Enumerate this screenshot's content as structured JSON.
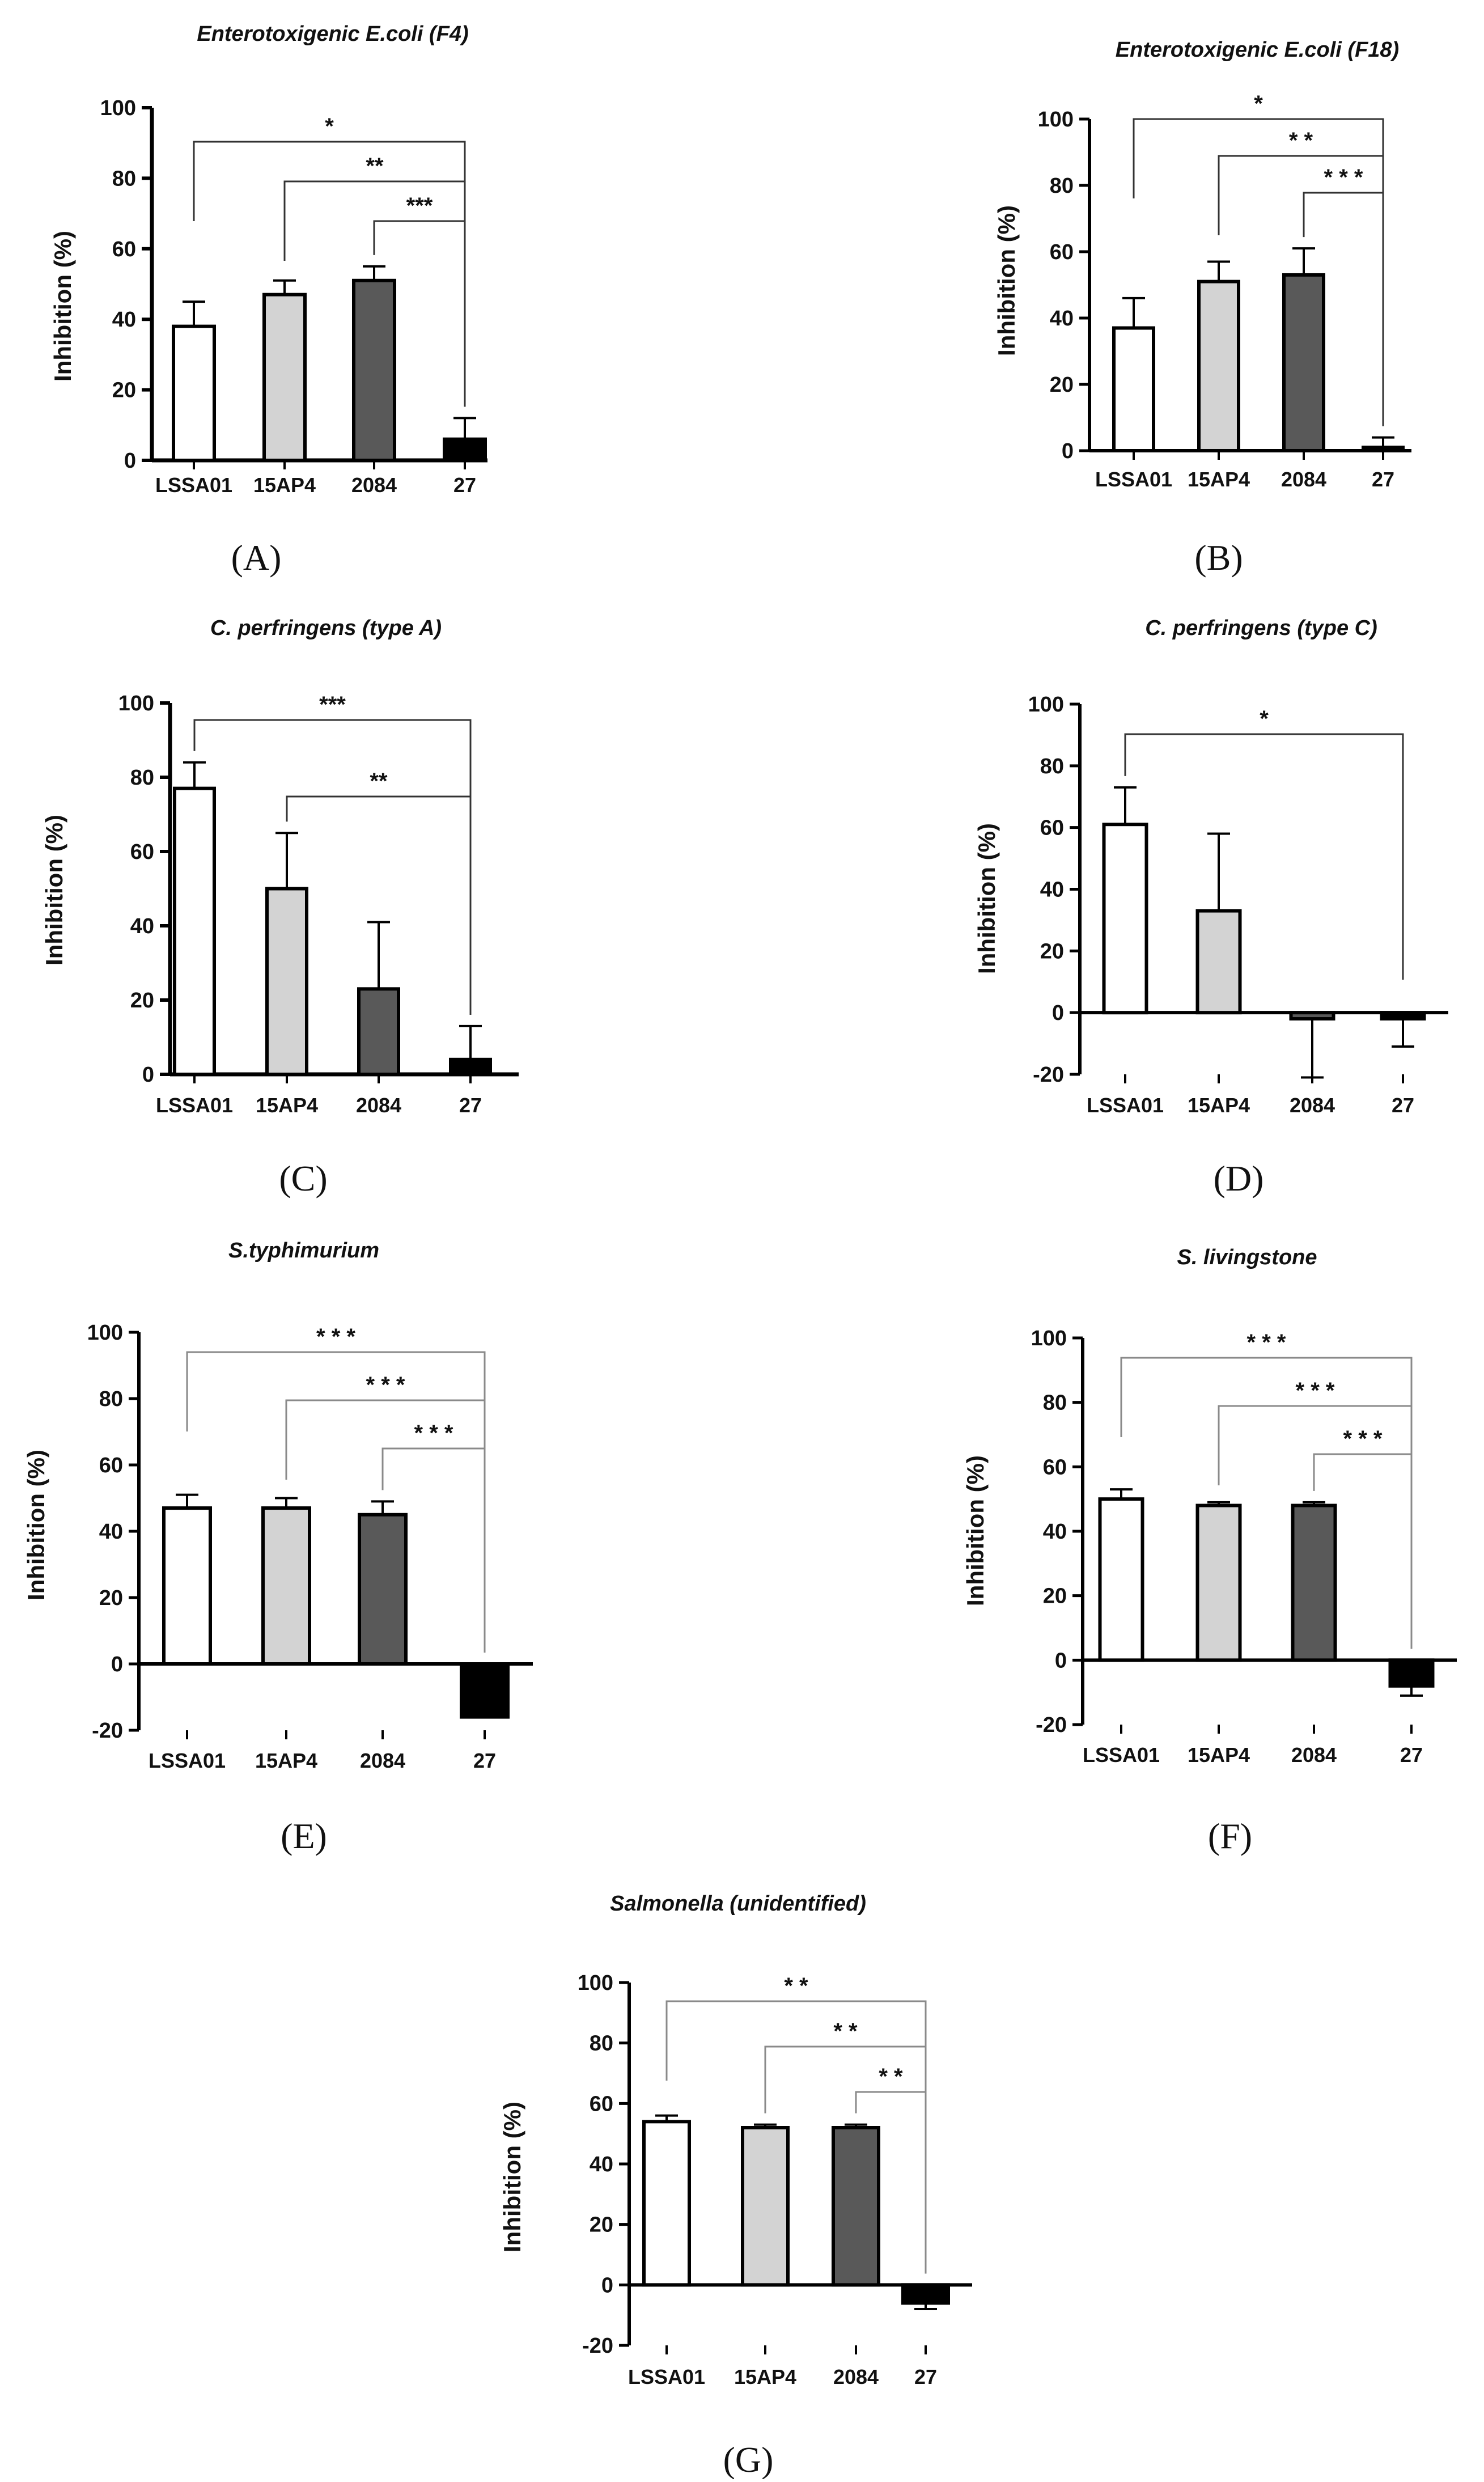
{
  "figure": {
    "panels": [
      {
        "label": "(A)",
        "title": "Enterotoxigenic E.coli (F4)",
        "ylabel": "Inhibition (%)",
        "ylim": [
          0,
          100
        ],
        "yticks": [
          "0",
          "20",
          "40",
          "60",
          "80",
          "100"
        ]
      },
      {
        "label": "(B)",
        "title": "Enterotoxigenic E.coli (F18)",
        "ylabel": "Inhibition (%)",
        "ylim": [
          0,
          100
        ],
        "yticks": [
          "0",
          "20",
          "40",
          "60",
          "80",
          "100"
        ]
      },
      {
        "label": "(C)",
        "title": "C. perfringens (type A)",
        "ylabel": "Inhibition (%)",
        "ylim": [
          0,
          100
        ],
        "yticks": [
          "0",
          "20",
          "40",
          "60",
          "80",
          "100"
        ]
      },
      {
        "label": "(D)",
        "title": "C. perfringens (type C)",
        "ylabel": "Inhibition (%)",
        "ylim": [
          -20,
          100
        ],
        "yticks": [
          "-20",
          "0",
          "20",
          "40",
          "60",
          "80",
          "100"
        ]
      },
      {
        "label": "(E)",
        "title": "S.typhimurium",
        "ylabel": "Inhibition (%)",
        "ylim": [
          -20,
          100
        ],
        "yticks": [
          "-20",
          "0",
          "20",
          "40",
          "60",
          "80",
          "100"
        ]
      },
      {
        "label": "(F)",
        "title": "S. livingstone",
        "ylabel": "Inhibition (%)",
        "ylim": [
          -20,
          100
        ],
        "yticks": [
          "-20",
          "0",
          "20",
          "40",
          "60",
          "80",
          "100"
        ]
      },
      {
        "label": "(G)",
        "title": "Salmonella (unidentified)",
        "ylabel": "Inhibition (%)",
        "ylim": [
          -20,
          100
        ],
        "yticks": [
          "-20",
          "0",
          "20",
          "40",
          "60",
          "80",
          "100"
        ]
      }
    ]
  },
  "chart_data": [
    {
      "type": "bar",
      "title": "Enterotoxigenic E.coli (F4)",
      "xlabel": "",
      "ylabel": "Inhibition (%)",
      "ylim": [
        0,
        100
      ],
      "categories": [
        "LSSA01",
        "15AP4",
        "2084",
        "27"
      ],
      "values": [
        38,
        47,
        51,
        6
      ],
      "errors": [
        7,
        4,
        4,
        6
      ],
      "colors": [
        "#ffffff",
        "#d3d3d3",
        "#595959",
        "#000000"
      ],
      "significance": [
        {
          "from": "LSSA01",
          "to": "27",
          "label": "*"
        },
        {
          "from": "15AP4",
          "to": "27",
          "label": "**"
        },
        {
          "from": "2084",
          "to": "27",
          "label": "***"
        }
      ]
    },
    {
      "type": "bar",
      "title": "Enterotoxigenic E.coli (F18)",
      "xlabel": "",
      "ylabel": "Inhibition (%)",
      "ylim": [
        0,
        100
      ],
      "categories": [
        "LSSA01",
        "15AP4",
        "2084",
        "27"
      ],
      "values": [
        37,
        51,
        53,
        1
      ],
      "errors": [
        9,
        6,
        8,
        3
      ],
      "colors": [
        "#ffffff",
        "#d3d3d3",
        "#595959",
        "#000000"
      ],
      "significance": [
        {
          "from": "LSSA01",
          "to": "27",
          "label": "*"
        },
        {
          "from": "15AP4",
          "to": "27",
          "label": "* *"
        },
        {
          "from": "2084",
          "to": "27",
          "label": "* * *"
        }
      ]
    },
    {
      "type": "bar",
      "title": "C. perfringens (type A)",
      "xlabel": "",
      "ylabel": "Inhibition (%)",
      "ylim": [
        0,
        100
      ],
      "categories": [
        "LSSA01",
        "15AP4",
        "2084",
        "27"
      ],
      "values": [
        77,
        50,
        23,
        4
      ],
      "errors": [
        7,
        15,
        18,
        9
      ],
      "colors": [
        "#ffffff",
        "#d3d3d3",
        "#595959",
        "#000000"
      ],
      "significance": [
        {
          "from": "LSSA01",
          "to": "27",
          "label": "***"
        },
        {
          "from": "15AP4",
          "to": "27",
          "label": "**"
        }
      ]
    },
    {
      "type": "bar",
      "title": "C. perfringens (type C)",
      "xlabel": "",
      "ylabel": "Inhibition (%)",
      "ylim": [
        -20,
        100
      ],
      "categories": [
        "LSSA01",
        "15AP4",
        "2084",
        "27"
      ],
      "values": [
        61,
        33,
        -2,
        -2
      ],
      "errors": [
        12,
        25,
        19,
        9
      ],
      "colors": [
        "#ffffff",
        "#d3d3d3",
        "#595959",
        "#000000"
      ],
      "significance": [
        {
          "from": "LSSA01",
          "to": "27",
          "label": "*"
        }
      ]
    },
    {
      "type": "bar",
      "title": "S.typhimurium",
      "xlabel": "",
      "ylabel": "Inhibition (%)",
      "ylim": [
        -20,
        100
      ],
      "categories": [
        "LSSA01",
        "15AP4",
        "2084",
        "27"
      ],
      "values": [
        47,
        47,
        45,
        -16
      ],
      "errors": [
        4,
        3,
        4,
        0
      ],
      "colors": [
        "#ffffff",
        "#d3d3d3",
        "#595959",
        "#000000"
      ],
      "significance": [
        {
          "from": "LSSA01",
          "to": "27",
          "label": "* * *"
        },
        {
          "from": "15AP4",
          "to": "27",
          "label": "* * *"
        },
        {
          "from": "2084",
          "to": "27",
          "label": "* * *"
        }
      ]
    },
    {
      "type": "bar",
      "title": "S. livingstone",
      "xlabel": "",
      "ylabel": "Inhibition (%)",
      "ylim": [
        -20,
        100
      ],
      "categories": [
        "LSSA01",
        "15AP4",
        "2084",
        "27"
      ],
      "values": [
        50,
        48,
        48,
        -8
      ],
      "errors": [
        3,
        1,
        1,
        3
      ],
      "colors": [
        "#ffffff",
        "#d3d3d3",
        "#595959",
        "#000000"
      ],
      "significance": [
        {
          "from": "LSSA01",
          "to": "27",
          "label": "* * *"
        },
        {
          "from": "15AP4",
          "to": "27",
          "label": "* * *"
        },
        {
          "from": "2084",
          "to": "27",
          "label": "* * *"
        }
      ]
    },
    {
      "type": "bar",
      "title": "Salmonella (unidentified)",
      "xlabel": "",
      "ylabel": "Inhibition (%)",
      "ylim": [
        -20,
        100
      ],
      "categories": [
        "LSSA01",
        "15AP4",
        "2084",
        "27"
      ],
      "values": [
        54,
        52,
        52,
        -6
      ],
      "errors": [
        2,
        1,
        1,
        2
      ],
      "colors": [
        "#ffffff",
        "#d3d3d3",
        "#595959",
        "#000000"
      ],
      "significance": [
        {
          "from": "LSSA01",
          "to": "27",
          "label": "* *"
        },
        {
          "from": "15AP4",
          "to": "27",
          "label": "* *"
        },
        {
          "from": "2084",
          "to": "27",
          "label": "* *"
        }
      ]
    }
  ]
}
